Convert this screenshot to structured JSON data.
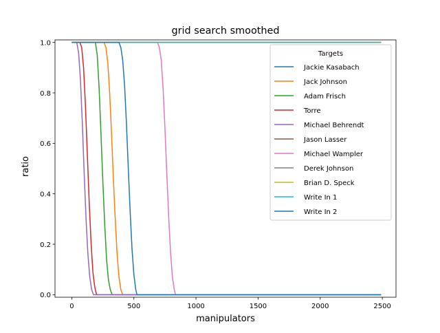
{
  "chart_data": {
    "type": "line",
    "title": "grid search smoothed",
    "xlabel": "manipulators",
    "ylabel": "ratio",
    "xlim": [
      -135,
      2610
    ],
    "ylim": [
      -0.01,
      1.01
    ],
    "xticks": [
      0,
      500,
      1000,
      1500,
      2000,
      2500
    ],
    "xtick_labels": [
      "0",
      "500",
      "1000",
      "1500",
      "2000",
      "2500"
    ],
    "yticks": [
      0.0,
      0.2,
      0.4,
      0.6,
      0.8,
      1.0
    ],
    "ytick_labels": [
      "0.0",
      "0.2",
      "0.4",
      "0.6",
      "0.8",
      "1.0"
    ],
    "grid": false,
    "legend": {
      "title": "Targets",
      "placement": "upper-right"
    },
    "series": [
      {
        "name": "Jackie Kasabach",
        "color": "#1f77b4",
        "x": [
          0,
          2490
        ],
        "y": [
          1.0,
          1.0
        ]
      },
      {
        "name": "Jack Johnson",
        "color": "#ff7f0e",
        "x": [
          0,
          260,
          275,
          290,
          305,
          320,
          335,
          350,
          365,
          380,
          395,
          410,
          2490
        ],
        "y": [
          1.0,
          1.0,
          0.98,
          0.92,
          0.8,
          0.64,
          0.46,
          0.3,
          0.16,
          0.07,
          0.02,
          0.0,
          0.0
        ]
      },
      {
        "name": "Adam Frisch",
        "color": "#2ca02c",
        "x": [
          0,
          190,
          205,
          220,
          235,
          250,
          265,
          280,
          295,
          310,
          325,
          2490
        ],
        "y": [
          1.0,
          1.0,
          0.95,
          0.82,
          0.64,
          0.45,
          0.28,
          0.14,
          0.06,
          0.02,
          0.0,
          0.0
        ]
      },
      {
        "name": "Torre",
        "color": "#d62728",
        "x": [
          0,
          65,
          80,
          95,
          110,
          125,
          140,
          155,
          170,
          185,
          200,
          2490
        ],
        "y": [
          1.0,
          1.0,
          0.98,
          0.9,
          0.75,
          0.56,
          0.37,
          0.21,
          0.09,
          0.03,
          0.0,
          0.0
        ]
      },
      {
        "name": "Michael Behrendt",
        "color": "#9467bd",
        "x": [
          0,
          40,
          55,
          70,
          85,
          100,
          115,
          130,
          145,
          160,
          175,
          2490
        ],
        "y": [
          1.0,
          1.0,
          0.96,
          0.85,
          0.68,
          0.48,
          0.3,
          0.16,
          0.07,
          0.02,
          0.0,
          0.0
        ]
      },
      {
        "name": "Jason Lasser",
        "color": "#8c564b",
        "x": [
          0,
          2490
        ],
        "y": [
          1.0,
          1.0
        ]
      },
      {
        "name": "Michael Wampler",
        "color": "#e377c2",
        "x": [
          0,
          690,
          705,
          720,
          735,
          750,
          765,
          780,
          795,
          810,
          825,
          835,
          2490
        ],
        "y": [
          1.0,
          1.0,
          0.98,
          0.93,
          0.82,
          0.66,
          0.48,
          0.31,
          0.17,
          0.07,
          0.02,
          0.0,
          0.0
        ]
      },
      {
        "name": "Derek Johnson",
        "color": "#7f7f7f",
        "x": [
          0,
          2490
        ],
        "y": [
          1.0,
          1.0
        ]
      },
      {
        "name": "Brian D. Speck",
        "color": "#bcbd22",
        "x": [
          0,
          2490
        ],
        "y": [
          1.0,
          1.0
        ]
      },
      {
        "name": "Write In 1",
        "color": "#17becf",
        "x": [
          0,
          2490
        ],
        "y": [
          1.0,
          1.0
        ]
      },
      {
        "name": "Write In 2",
        "color": "#1f77b4",
        "x": [
          0,
          380,
          395,
          410,
          425,
          440,
          455,
          470,
          485,
          500,
          515,
          525,
          2490
        ],
        "y": [
          1.0,
          1.0,
          0.98,
          0.93,
          0.83,
          0.68,
          0.5,
          0.33,
          0.18,
          0.08,
          0.02,
          0.0,
          0.0
        ]
      }
    ]
  }
}
